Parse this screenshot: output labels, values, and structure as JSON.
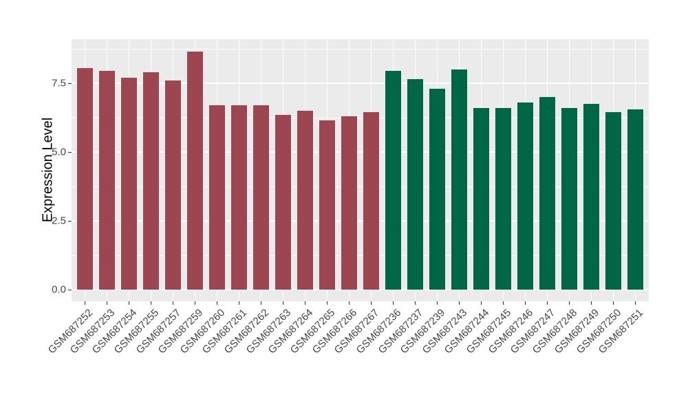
{
  "figure": {
    "background": "#FFFFFF",
    "panel_background": "#EBEBEB",
    "grid_color": "#FFFFFF",
    "axis_text_color": "#454545",
    "axis_title_color": "#000000",
    "tick_mark_color": "#333333"
  },
  "chart_data": {
    "type": "bar",
    "title": "",
    "xlabel": "",
    "ylabel": "Expression Level",
    "ylim": [
      0,
      9.1
    ],
    "grid": "major+minor",
    "legend_position": "none",
    "yticks": [
      {
        "value": 0.0,
        "label": "0.0"
      },
      {
        "value": 2.5,
        "label": "2.5"
      },
      {
        "value": 5.0,
        "label": "5.0"
      },
      {
        "value": 7.5,
        "label": "7.5"
      }
    ],
    "y_minor_gridlines": [
      1.25,
      3.75,
      6.25,
      8.75
    ],
    "group_colors": {
      "maroon": "#9E4552",
      "green": "#006647"
    },
    "bars": [
      {
        "label": "GSM687252",
        "value": 8.05,
        "group": "maroon"
      },
      {
        "label": "GSM687253",
        "value": 7.95,
        "group": "maroon"
      },
      {
        "label": "GSM687254",
        "value": 7.7,
        "group": "maroon"
      },
      {
        "label": "GSM687255",
        "value": 7.9,
        "group": "maroon"
      },
      {
        "label": "GSM687257",
        "value": 7.6,
        "group": "maroon"
      },
      {
        "label": "GSM687259",
        "value": 8.65,
        "group": "maroon"
      },
      {
        "label": "GSM687260",
        "value": 6.7,
        "group": "maroon"
      },
      {
        "label": "GSM687261",
        "value": 6.7,
        "group": "maroon"
      },
      {
        "label": "GSM687262",
        "value": 6.7,
        "group": "maroon"
      },
      {
        "label": "GSM687263",
        "value": 6.35,
        "group": "maroon"
      },
      {
        "label": "GSM687264",
        "value": 6.5,
        "group": "maroon"
      },
      {
        "label": "GSM687265",
        "value": 6.15,
        "group": "maroon"
      },
      {
        "label": "GSM687266",
        "value": 6.3,
        "group": "maroon"
      },
      {
        "label": "GSM687267",
        "value": 6.45,
        "group": "maroon"
      },
      {
        "label": "GSM687236",
        "value": 7.95,
        "group": "green"
      },
      {
        "label": "GSM687237",
        "value": 7.65,
        "group": "green"
      },
      {
        "label": "GSM687239",
        "value": 7.3,
        "group": "green"
      },
      {
        "label": "GSM687243",
        "value": 8.0,
        "group": "green"
      },
      {
        "label": "GSM687244",
        "value": 6.6,
        "group": "green"
      },
      {
        "label": "GSM687245",
        "value": 6.6,
        "group": "green"
      },
      {
        "label": "GSM687246",
        "value": 6.8,
        "group": "green"
      },
      {
        "label": "GSM687247",
        "value": 7.0,
        "group": "green"
      },
      {
        "label": "GSM687248",
        "value": 6.6,
        "group": "green"
      },
      {
        "label": "GSM687249",
        "value": 6.75,
        "group": "green"
      },
      {
        "label": "GSM687250",
        "value": 6.45,
        "group": "green"
      },
      {
        "label": "GSM687251",
        "value": 6.55,
        "group": "green"
      }
    ]
  }
}
